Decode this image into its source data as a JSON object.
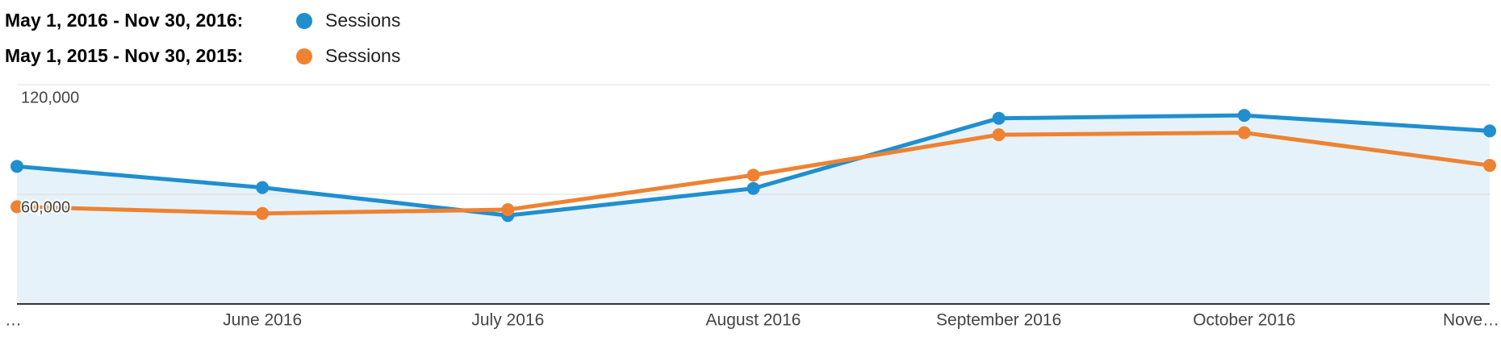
{
  "chart_data": {
    "type": "line",
    "categories": [
      "…",
      "June 2016",
      "July 2016",
      "August 2016",
      "September 2016",
      "October 2016",
      "Nove…"
    ],
    "series": [
      {
        "period": "May 1, 2016 - Nov 30, 2016:",
        "name": "Sessions",
        "color": "#1f8fcf",
        "area": true,
        "values": [
          75300,
          63700,
          48400,
          63200,
          101600,
          103200,
          94700
        ]
      },
      {
        "period": "May 1, 2015 - Nov 30, 2015:",
        "name": "Sessions",
        "color": "#ee8231",
        "area": false,
        "values": [
          53200,
          49500,
          51600,
          70500,
          92600,
          93700,
          75800
        ]
      }
    ],
    "ylim": [
      0,
      120000
    ],
    "yticks": [
      {
        "value": 60000,
        "label": "60,000"
      },
      {
        "value": 120000,
        "label": "120,000"
      }
    ],
    "grid": true
  }
}
